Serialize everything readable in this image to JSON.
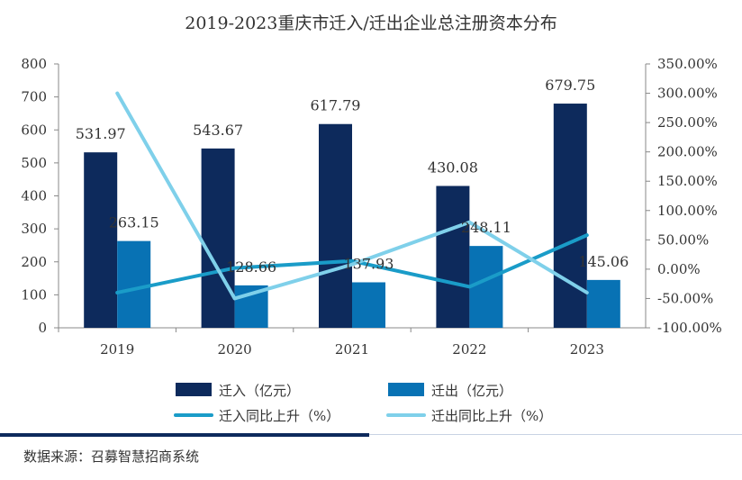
{
  "chart_data": {
    "type": "bar",
    "title": "2019-2023重庆市迁入/迁出企业总注册资本分布",
    "categories": [
      "2019",
      "2020",
      "2021",
      "2022",
      "2023"
    ],
    "series": [
      {
        "name": "迁入（亿元）",
        "kind": "bar",
        "axis": "left",
        "color": "#0d2a5c",
        "values": [
          531.97,
          543.67,
          617.79,
          430.08,
          679.75
        ],
        "labels": [
          "531.97",
          "543.67",
          "617.79",
          "430.08",
          "679.75"
        ]
      },
      {
        "name": "迁出（亿元）",
        "kind": "bar",
        "axis": "left",
        "color": "#0872b4",
        "values": [
          263.15,
          128.66,
          137.93,
          248.11,
          145.06
        ],
        "labels": [
          "263.15",
          "128.66",
          "137.93",
          "248.11",
          "145.06"
        ]
      },
      {
        "name": "迁入同比上升（%）",
        "kind": "line",
        "axis": "right",
        "color": "#1a9cc8",
        "values": [
          -40,
          2,
          14,
          -30,
          58
        ]
      },
      {
        "name": "迁出同比上升（%）",
        "kind": "line",
        "axis": "right",
        "color": "#7fd0ea",
        "values": [
          300,
          -50,
          8,
          80,
          -40
        ]
      }
    ],
    "y_left": {
      "min": 0,
      "max": 800,
      "ticks": [
        "0",
        "100",
        "200",
        "300",
        "400",
        "500",
        "600",
        "700",
        "800"
      ]
    },
    "y_right": {
      "min": -100,
      "max": 350,
      "ticks": [
        "-100.00%",
        "-50.00%",
        "0.00%",
        "50.00%",
        "100.00%",
        "150.00%",
        "200.00%",
        "250.00%",
        "300.00%",
        "350.00%"
      ]
    },
    "legend_placement": "bottom",
    "grid": false
  },
  "footer": {
    "source": "数据来源：召募智慧招商系统",
    "rule_dark": "#0d2a5c",
    "rule_light": "#c9d3e3"
  }
}
